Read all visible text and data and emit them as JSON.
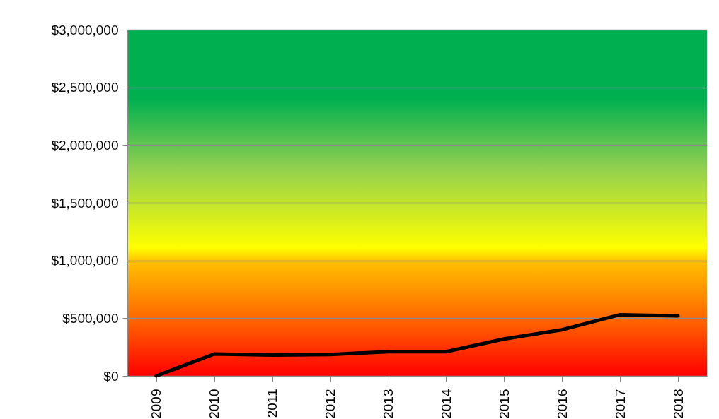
{
  "chart_data": {
    "type": "line",
    "categories": [
      "2009",
      "2010",
      "2011",
      "2012",
      "2013",
      "2014",
      "2015",
      "2016",
      "2017",
      "2018"
    ],
    "series": [
      {
        "color": "#000000",
        "values": [
          0,
          190000,
          180000,
          185000,
          210000,
          210000,
          320000,
          400000,
          530000,
          520000
        ]
      }
    ],
    "ylim": [
      0,
      3000000
    ],
    "yticks": [
      {
        "value": 0,
        "label": "$0"
      },
      {
        "value": 500000,
        "label": "$500,000"
      },
      {
        "value": 1000000,
        "label": "$1,000,000"
      },
      {
        "value": 1500000,
        "label": "$1,500,000"
      },
      {
        "value": 2000000,
        "label": "$2,000,000"
      },
      {
        "value": 2500000,
        "label": "$2,500,000"
      },
      {
        "value": 3000000,
        "label": "$3,000,000"
      }
    ],
    "grid": "y",
    "legend": false,
    "marker": "none",
    "line_style": "solid"
  }
}
